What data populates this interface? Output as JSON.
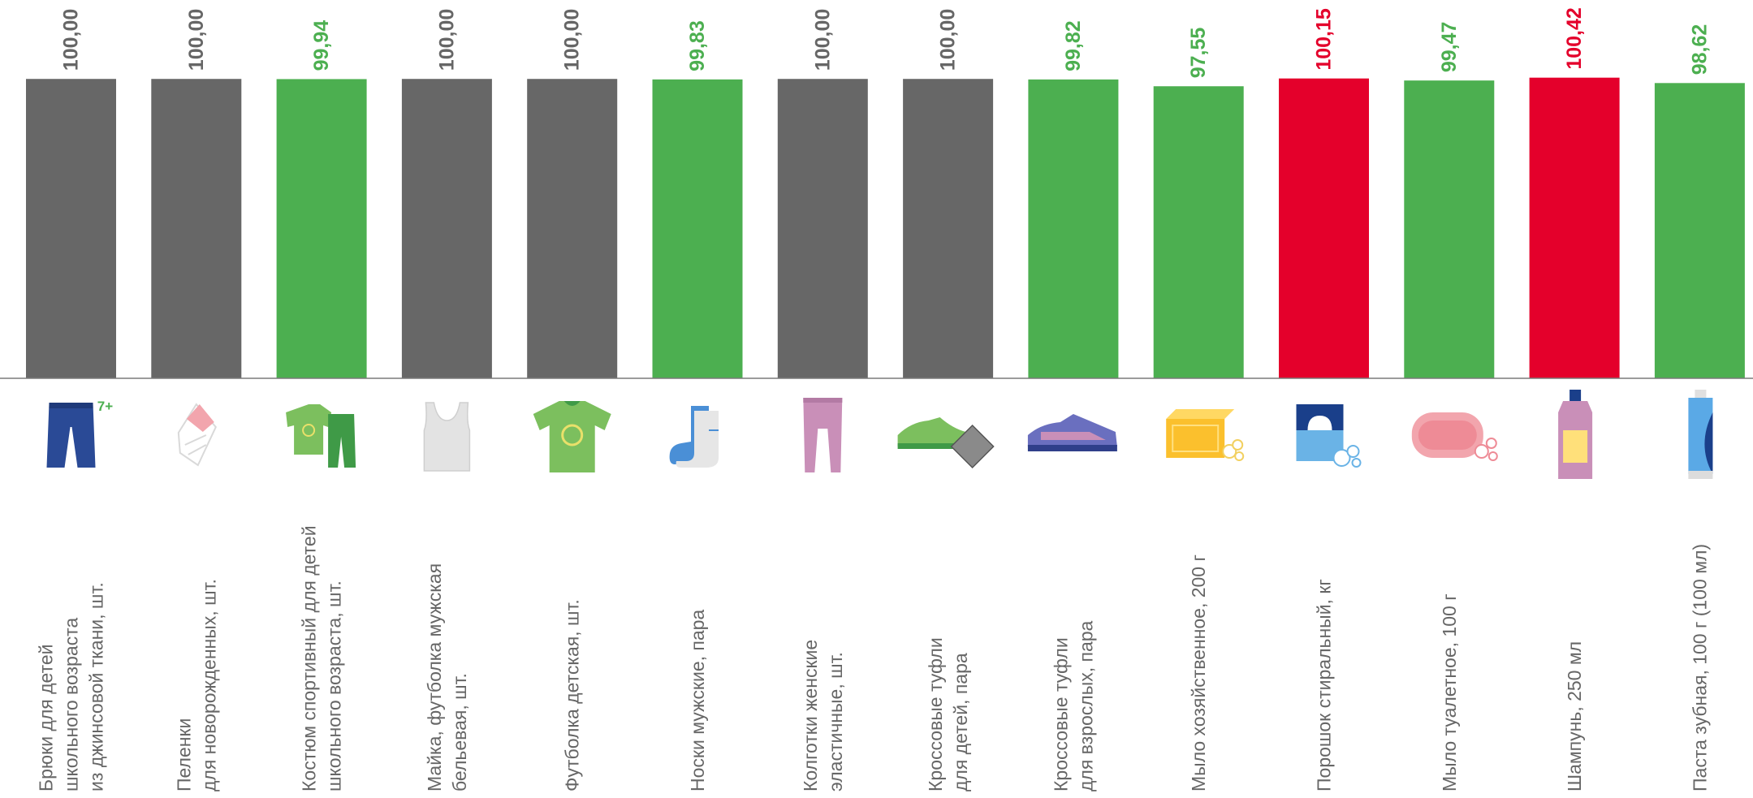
{
  "chart_data": {
    "type": "bar",
    "title": "",
    "xlabel": "",
    "ylabel": "",
    "ylim": [
      0,
      100.6
    ],
    "grid": false,
    "legend": "none",
    "colors": {
      "neutral": "#676767",
      "decrease": "#4caf50",
      "increase": "#e4002b",
      "label_neutral": "#666666"
    },
    "categories": [
      "Брюки для детей школьного возраста из джинсовой ткани, шт.",
      "Пеленки для новорожденных, шт.",
      "Костюм спортивный для детей школьного возраста, шт.",
      "Майка, футболка мужская бельевая, шт.",
      "Футболка детская, шт.",
      "Носки мужские, пара",
      "Колготки женские эластичные, шт.",
      "Кроссовые туфли для детей, пара",
      "Кроссовые туфли для взрослых, пара",
      "Мыло хозяйственное, 200 г",
      "Порошок стиральный, кг",
      "Мыло туалетное, 100 г",
      "Шампунь, 250 мл",
      "Паста зубная, 100 г (100 мл)"
    ],
    "category_lines": [
      [
        "Брюки для детей",
        "школьного возраста",
        "из джинсовой ткани, шт."
      ],
      [
        "Пеленки",
        "для новорожденных, шт."
      ],
      [
        "Костюм спортивный для детей",
        "школьного возраста, шт."
      ],
      [
        "Майка, футболка мужская",
        "бельевая, шт."
      ],
      [
        "Футболка детская, шт."
      ],
      [
        "Носки мужские, пара"
      ],
      [
        "Колготки женские",
        "эластичные, шт."
      ],
      [
        "Кроссовые туфли",
        "для детей, пара"
      ],
      [
        "Кроссовые туфли",
        "для взрослых, пара"
      ],
      [
        "Мыло хозяйственное, 200 г"
      ],
      [
        "Порошок стиральный, кг"
      ],
      [
        "Мыло туалетное, 100 г"
      ],
      [
        "Шампунь, 250 мл"
      ],
      [
        "Паста зубная, 100 г (100 мл)"
      ]
    ],
    "values": [
      100.0,
      100.0,
      99.94,
      100.0,
      100.0,
      99.83,
      100.0,
      100.0,
      99.82,
      97.55,
      100.15,
      99.47,
      100.42,
      98.62
    ],
    "value_labels": [
      "100,00",
      "100,00",
      "99,94",
      "100,00",
      "100,00",
      "99,83",
      "100,00",
      "100,00",
      "99,82",
      "97,55",
      "100,15",
      "99,47",
      "100,42",
      "98,62"
    ],
    "icons": [
      "jeans-icon",
      "swaddle-icon",
      "tracksuit-icon",
      "tank-top-icon",
      "kids-tshirt-icon",
      "sock-icon",
      "tights-icon",
      "kids-sneaker-icon",
      "adult-sneaker-icon",
      "laundry-soap-icon",
      "detergent-box-icon",
      "toilet-soap-icon",
      "shampoo-bottle-icon",
      "toothpaste-tube-icon"
    ],
    "icon_badges": [
      "7+",
      "",
      "",
      "",
      "",
      "",
      "",
      "",
      "",
      "",
      "",
      "",
      "",
      ""
    ]
  }
}
